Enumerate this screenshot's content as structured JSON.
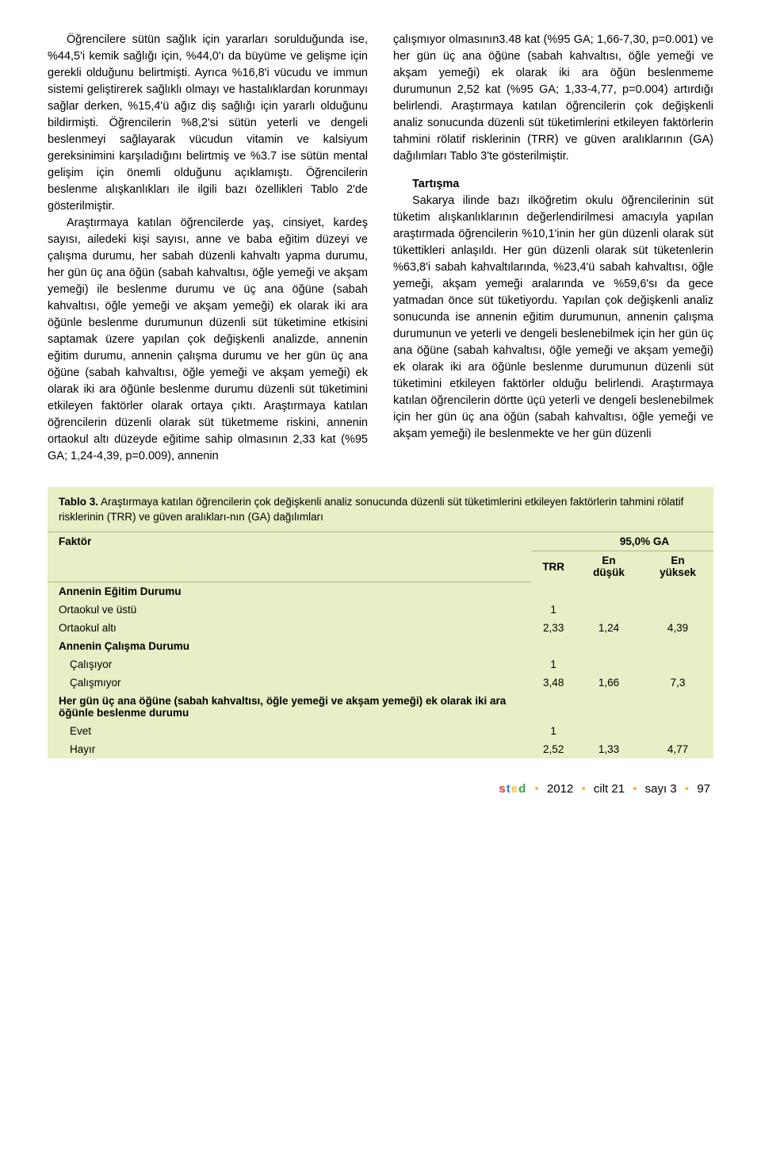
{
  "col1": {
    "p1": "Öğrencilere sütün sağlık için yararları sorulduğunda ise, %44,5'i kemik sağlığı için, %44,0'ı da büyüme ve gelişme için gerekli olduğunu belirtmişti. Ayrıca %16,8'i vücudu ve immun sistemi geliştirerek sağlıklı olmayı ve hastalıklardan korunmayı sağlar derken, %15,4'ü ağız diş sağlığı için yararlı olduğunu bildirmişti. Öğrencilerin %8,2'si sütün yeterli ve dengeli beslenmeyi sağlayarak vücudun vitamin ve kalsiyum gereksinimini karşıladığını belirtmiş ve %3.7 ise sütün mental gelişim için önemli olduğunu açıklamıştı. Öğrencilerin beslenme alışkanlıkları ile ilgili bazı özellikleri Tablo 2'de gösterilmiştir.",
    "p2": "Araştırmaya katılan öğrencilerde yaş, cinsiyet, kardeş sayısı, ailedeki kişi sayısı, anne ve baba eğitim düzeyi ve çalışma durumu, her sabah düzenli kahvaltı yapma durumu, her gün üç ana öğün (sabah kahvaltısı, öğle yemeği ve akşam yemeği) ile beslenme durumu ve üç ana öğüne (sabah kahvaltısı, öğle yemeği ve akşam yemeği) ek olarak iki ara öğünle beslenme durumunun düzenli süt tüketimine etkisini saptamak üzere yapılan çok değişkenli analizde, annenin eğitim durumu, annenin çalışma durumu ve her gün üç ana öğüne (sabah kahvaltısı, öğle yemeği ve akşam yemeği) ek olarak iki ara öğünle beslenme durumu düzenli süt tüketimini etkileyen faktörler olarak ortaya çıktı. Araştırmaya katılan öğrencilerin düzenli olarak süt tüketmeme riskini, annenin ortaokul altı düzeyde eğitime sahip olmasının 2,33 kat (%95 GA; 1,24-4,39, p=0.009), annenin"
  },
  "col2": {
    "p1": "çalışmıyor olmasının3.48 kat (%95 GA; 1,66-7,30, p=0.001) ve her gün üç ana öğüne (sabah kahvaltısı, öğle yemeği ve akşam yemeği) ek olarak iki ara öğün beslenmeme durumunun 2,52 kat (%95 GA; 1,33-4,77, p=0.004) artırdığı belirlendi. Araştırmaya katılan öğrencilerin çok değişkenli analiz sonucunda düzenli süt tüketimlerini etkileyen faktörlerin tahmini rölatif risklerinin (TRR) ve güven aralıklarının (GA) dağılımları Tablo 3'te gösterilmiştir.",
    "heading": "Tartışma",
    "p2": "Sakarya ilinde bazı ilköğretim okulu öğrencilerinin süt tüketim alışkanlıklarının değerlendirilmesi amacıyla yapılan araştırmada öğrencilerin %10,1'inin her gün düzenli olarak süt tükettikleri anlaşıldı. Her gün düzenli olarak süt tüketenlerin %63,8'i sabah kahvaltılarında, %23,4'ü sabah kahvaltısı, öğle yemeği, akşam yemeği aralarında ve %59,6'sı da gece yatmadan önce süt tüketiyordu. Yapılan çok değişkenli analiz sonucunda ise annenin eğitim durumunun, annenin çalışma durumunun ve yeterli ve dengeli beslenebilmek için her gün üç ana öğüne (sabah kahvaltısı, öğle yemeği ve akşam yemeği) ek olarak iki ara öğünle beslenme durumunun düzenli süt tüketimini etkileyen faktörler olduğu belirlendi. Araştırmaya katılan öğrencilerin dörtte üçü yeterli ve dengeli beslenebilmek için her gün üç ana öğün (sabah kahvaltısı, öğle yemeği ve akşam yemeği) ile beslenmekte ve her gün düzenli"
  },
  "table3": {
    "caption_label": "Tablo 3.",
    "caption_text": " Araştırmaya katılan öğrencilerin çok değişkenli analiz sonucunda düzenli süt tüketimlerini etkileyen faktörlerin tahmini rölatif risklerinin (TRR) ve güven aralıkları-nın (GA) dağılımları",
    "headers": {
      "factor": "Faktör",
      "ga": "95,0% GA",
      "trr": "TRR",
      "low": "En düşük",
      "high": "En yüksek"
    },
    "rows": [
      {
        "label": "Annenin Eğitim Durumu",
        "bold": true,
        "trr": "",
        "low": "",
        "high": ""
      },
      {
        "label": "Ortaokul ve üstü",
        "bold": false,
        "trr": "1",
        "low": "",
        "high": ""
      },
      {
        "label": "Ortaokul altı",
        "bold": false,
        "trr": "2,33",
        "low": "1,24",
        "high": "4,39"
      },
      {
        "label": "Annenin Çalışma Durumu",
        "bold": true,
        "trr": "",
        "low": "",
        "high": ""
      },
      {
        "label": "Çalışıyor",
        "bold": false,
        "indent": true,
        "trr": "1",
        "low": "",
        "high": ""
      },
      {
        "label": "Çalışmıyor",
        "bold": false,
        "indent": true,
        "trr": "3,48",
        "low": "1,66",
        "high": "7,3"
      },
      {
        "label": "Her gün üç ana öğüne (sabah kahvaltısı, öğle yemeği ve akşam yemeği) ek olarak iki ara öğünle beslenme durumu",
        "bold": true,
        "trr": "",
        "low": "",
        "high": ""
      },
      {
        "label": "Evet",
        "bold": false,
        "indent": true,
        "trr": "1",
        "low": "",
        "high": ""
      },
      {
        "label": "Hayır",
        "bold": false,
        "indent": true,
        "trr": "2,52",
        "low": "1,33",
        "high": "4,77"
      }
    ]
  },
  "footer": {
    "year": "2012",
    "cilt": "cilt 21",
    "sayi": "sayı 3",
    "page": "97"
  }
}
